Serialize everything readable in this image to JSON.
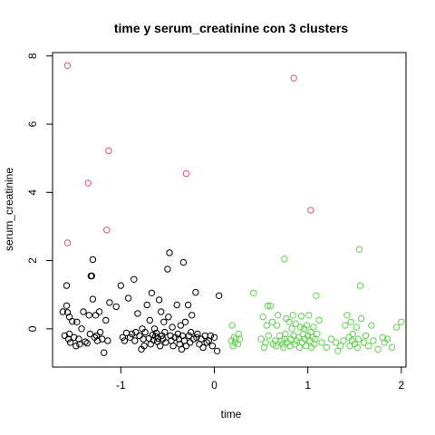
{
  "chart_data": {
    "type": "scatter",
    "title": "time  y  serum_creatinine con  3  clusters",
    "xlabel": "time",
    "ylabel": "serum_creatinine",
    "xlim": [
      -1.73,
      2.05
    ],
    "ylim": [
      -1.12,
      8.1
    ],
    "xticks": [
      -1,
      0,
      1,
      2
    ],
    "yticks": [
      0,
      2,
      4,
      6,
      8
    ],
    "grid": false,
    "legend": "none",
    "series": [
      {
        "cluster": 1,
        "color": "#000000",
        "points": [
          [
            -1.62,
            0.5
          ],
          [
            -1.58,
            0.68
          ],
          [
            -1.58,
            1.27
          ],
          [
            -1.57,
            0.48
          ],
          [
            -1.6,
            -0.2
          ],
          [
            -1.56,
            -0.3
          ],
          [
            -1.55,
            -0.15
          ],
          [
            -1.55,
            0.35
          ],
          [
            -1.54,
            -0.4
          ],
          [
            -1.52,
            0.22
          ],
          [
            -1.5,
            -0.25
          ],
          [
            -1.48,
            -0.5
          ],
          [
            -1.47,
            0.2
          ],
          [
            -1.45,
            -0.3
          ],
          [
            -1.44,
            -0.45
          ],
          [
            -1.42,
            0.0
          ],
          [
            -1.4,
            0.5
          ],
          [
            -1.38,
            -0.38
          ],
          [
            -1.36,
            -0.42
          ],
          [
            -1.34,
            0.4
          ],
          [
            -1.33,
            -0.15
          ],
          [
            -1.32,
            1.55
          ],
          [
            -1.31,
            1.55
          ],
          [
            -1.3,
            2.03
          ],
          [
            -1.3,
            0.87
          ],
          [
            -1.28,
            -0.25
          ],
          [
            -1.27,
            0.4
          ],
          [
            -1.26,
            -0.2
          ],
          [
            -1.25,
            -0.35
          ],
          [
            -1.23,
            0.5
          ],
          [
            -1.22,
            -0.1
          ],
          [
            -1.2,
            -0.3
          ],
          [
            -1.18,
            -0.7
          ],
          [
            -1.16,
            0.25
          ],
          [
            -1.14,
            -0.35
          ],
          [
            -1.12,
            0.77
          ],
          [
            -1.05,
            0.65
          ],
          [
            -1.0,
            1.27
          ],
          [
            -0.98,
            -0.25
          ],
          [
            -0.96,
            -0.35
          ],
          [
            -0.94,
            -0.12
          ],
          [
            -0.92,
            0.9
          ],
          [
            -0.9,
            -0.25
          ],
          [
            -0.88,
            -0.15
          ],
          [
            -0.86,
            1.45
          ],
          [
            -0.85,
            -0.35
          ],
          [
            -0.84,
            -0.1
          ],
          [
            -0.82,
            0.45
          ],
          [
            -0.8,
            -0.2
          ],
          [
            -0.78,
            -0.6
          ],
          [
            -0.77,
            0.0
          ],
          [
            -0.76,
            -0.3
          ],
          [
            -0.75,
            -0.5
          ],
          [
            -0.74,
            -0.1
          ],
          [
            -0.72,
            0.7
          ],
          [
            -0.7,
            -0.28
          ],
          [
            -0.69,
            0.25
          ],
          [
            -0.68,
            -0.45
          ],
          [
            -0.67,
            1.05
          ],
          [
            -0.66,
            -0.18
          ],
          [
            -0.65,
            -0.33
          ],
          [
            -0.64,
            0.0
          ],
          [
            -0.63,
            -0.22
          ],
          [
            -0.62,
            -0.12
          ],
          [
            -0.61,
            -0.38
          ],
          [
            -0.6,
            -0.28
          ],
          [
            -0.59,
            0.85
          ],
          [
            -0.58,
            -0.5
          ],
          [
            -0.57,
            0.5
          ],
          [
            -0.56,
            -0.2
          ],
          [
            -0.55,
            -0.3
          ],
          [
            -0.54,
            0.2
          ],
          [
            -0.53,
            -0.1
          ],
          [
            -0.52,
            -0.4
          ],
          [
            -0.5,
            1.75
          ],
          [
            -0.49,
            0.35
          ],
          [
            -0.48,
            2.23
          ],
          [
            -0.47,
            -0.2
          ],
          [
            -0.46,
            -0.35
          ],
          [
            -0.45,
            0.05
          ],
          [
            -0.44,
            -0.5
          ],
          [
            -0.42,
            -0.25
          ],
          [
            -0.4,
            0.7
          ],
          [
            -0.39,
            -0.15
          ],
          [
            -0.38,
            -0.3
          ],
          [
            -0.37,
            -0.45
          ],
          [
            -0.36,
            0.1
          ],
          [
            -0.35,
            -0.6
          ],
          [
            -0.34,
            -0.2
          ],
          [
            -0.33,
            1.95
          ],
          [
            -0.32,
            -0.35
          ],
          [
            -0.31,
            0.2
          ],
          [
            -0.3,
            -0.5
          ],
          [
            -0.28,
            0.7
          ],
          [
            -0.27,
            -0.2
          ],
          [
            -0.26,
            -0.4
          ],
          [
            -0.25,
            -0.1
          ],
          [
            -0.24,
            0.4
          ],
          [
            -0.22,
            -0.3
          ],
          [
            -0.2,
            1.07
          ],
          [
            -0.19,
            -0.25
          ],
          [
            -0.18,
            -0.15
          ],
          [
            -0.16,
            -0.45
          ],
          [
            -0.14,
            -0.3
          ],
          [
            -0.12,
            -0.55
          ],
          [
            -0.1,
            -0.2
          ],
          [
            -0.08,
            -0.4
          ],
          [
            -0.06,
            -0.35
          ],
          [
            -0.04,
            -0.2
          ],
          [
            -0.02,
            -0.5
          ],
          [
            0.0,
            -0.25
          ],
          [
            0.03,
            -0.65
          ],
          [
            0.05,
            0.97
          ]
        ]
      },
      {
        "cluster": 2,
        "color": "#df536b",
        "points": [
          [
            -1.57,
            7.72
          ],
          [
            -1.57,
            2.52
          ],
          [
            -1.35,
            4.27
          ],
          [
            -1.15,
            2.9
          ],
          [
            -1.13,
            5.22
          ],
          [
            -0.3,
            4.55
          ],
          [
            0.85,
            7.35
          ],
          [
            1.03,
            3.48
          ]
        ]
      },
      {
        "cluster": 3,
        "color": "#61d04f",
        "points": [
          [
            0.18,
            -0.35
          ],
          [
            0.19,
            0.1
          ],
          [
            0.2,
            -0.5
          ],
          [
            0.21,
            -0.25
          ],
          [
            0.22,
            -0.4
          ],
          [
            0.23,
            -0.3
          ],
          [
            0.25,
            -0.45
          ],
          [
            0.26,
            -0.15
          ],
          [
            0.27,
            -0.3
          ],
          [
            0.42,
            1.05
          ],
          [
            0.5,
            -0.3
          ],
          [
            0.52,
            0.35
          ],
          [
            0.53,
            -0.55
          ],
          [
            0.55,
            -0.4
          ],
          [
            0.56,
            0.1
          ],
          [
            0.57,
            0.67
          ],
          [
            0.58,
            -0.2
          ],
          [
            0.6,
            0.67
          ],
          [
            0.62,
            0.2
          ],
          [
            0.63,
            -0.45
          ],
          [
            0.65,
            -0.35
          ],
          [
            0.66,
            -0.5
          ],
          [
            0.67,
            0.1
          ],
          [
            0.68,
            0.4
          ],
          [
            0.7,
            -0.2
          ],
          [
            0.72,
            -0.35
          ],
          [
            0.73,
            -0.45
          ],
          [
            0.74,
            -0.55
          ],
          [
            0.75,
            -0.3
          ],
          [
            0.75,
            2.05
          ],
          [
            0.76,
            -0.15
          ],
          [
            0.77,
            0.3
          ],
          [
            0.78,
            -0.4
          ],
          [
            0.8,
            0.2
          ],
          [
            0.81,
            -0.5
          ],
          [
            0.82,
            -0.3
          ],
          [
            0.83,
            0.0
          ],
          [
            0.84,
            0.4
          ],
          [
            0.85,
            -0.2
          ],
          [
            0.86,
            -0.45
          ],
          [
            0.87,
            0.15
          ],
          [
            0.88,
            -0.35
          ],
          [
            0.9,
            -0.25
          ],
          [
            0.91,
            -0.55
          ],
          [
            0.92,
            0.05
          ],
          [
            0.93,
            0.37
          ],
          [
            0.94,
            -0.4
          ],
          [
            0.95,
            -0.15
          ],
          [
            0.96,
            0.0
          ],
          [
            0.97,
            -0.3
          ],
          [
            0.98,
            -0.5
          ],
          [
            0.99,
            0.1
          ],
          [
            1.0,
            -0.2
          ],
          [
            1.01,
            0.4
          ],
          [
            1.02,
            -0.35
          ],
          [
            1.03,
            -0.1
          ],
          [
            1.04,
            -0.55
          ],
          [
            1.05,
            -0.25
          ],
          [
            1.06,
            0.05
          ],
          [
            1.07,
            -0.45
          ],
          [
            1.08,
            -0.3
          ],
          [
            1.09,
            0.97
          ],
          [
            1.1,
            -0.15
          ],
          [
            1.12,
            0.25
          ],
          [
            1.15,
            -0.4
          ],
          [
            1.2,
            -0.55
          ],
          [
            1.25,
            -0.3
          ],
          [
            1.3,
            -0.4
          ],
          [
            1.32,
            -0.65
          ],
          [
            1.35,
            -0.5
          ],
          [
            1.38,
            -0.35
          ],
          [
            1.4,
            0.1
          ],
          [
            1.42,
            0.4
          ],
          [
            1.44,
            -0.25
          ],
          [
            1.45,
            -0.5
          ],
          [
            1.46,
            0.2
          ],
          [
            1.47,
            -0.35
          ],
          [
            1.48,
            -0.15
          ],
          [
            1.5,
            -0.45
          ],
          [
            1.52,
            0.05
          ],
          [
            1.53,
            -0.55
          ],
          [
            1.54,
            -0.3
          ],
          [
            1.55,
            2.33
          ],
          [
            1.56,
            1.27
          ],
          [
            1.57,
            0.3
          ],
          [
            1.6,
            -0.4
          ],
          [
            1.62,
            -0.2
          ],
          [
            1.65,
            -0.5
          ],
          [
            1.68,
            0.1
          ],
          [
            1.7,
            -0.35
          ],
          [
            1.75,
            -0.6
          ],
          [
            1.8,
            -0.25
          ],
          [
            1.82,
            -0.4
          ],
          [
            1.85,
            -0.3
          ],
          [
            1.9,
            -0.55
          ],
          [
            1.95,
            0.05
          ],
          [
            2.0,
            0.2
          ]
        ]
      }
    ]
  }
}
